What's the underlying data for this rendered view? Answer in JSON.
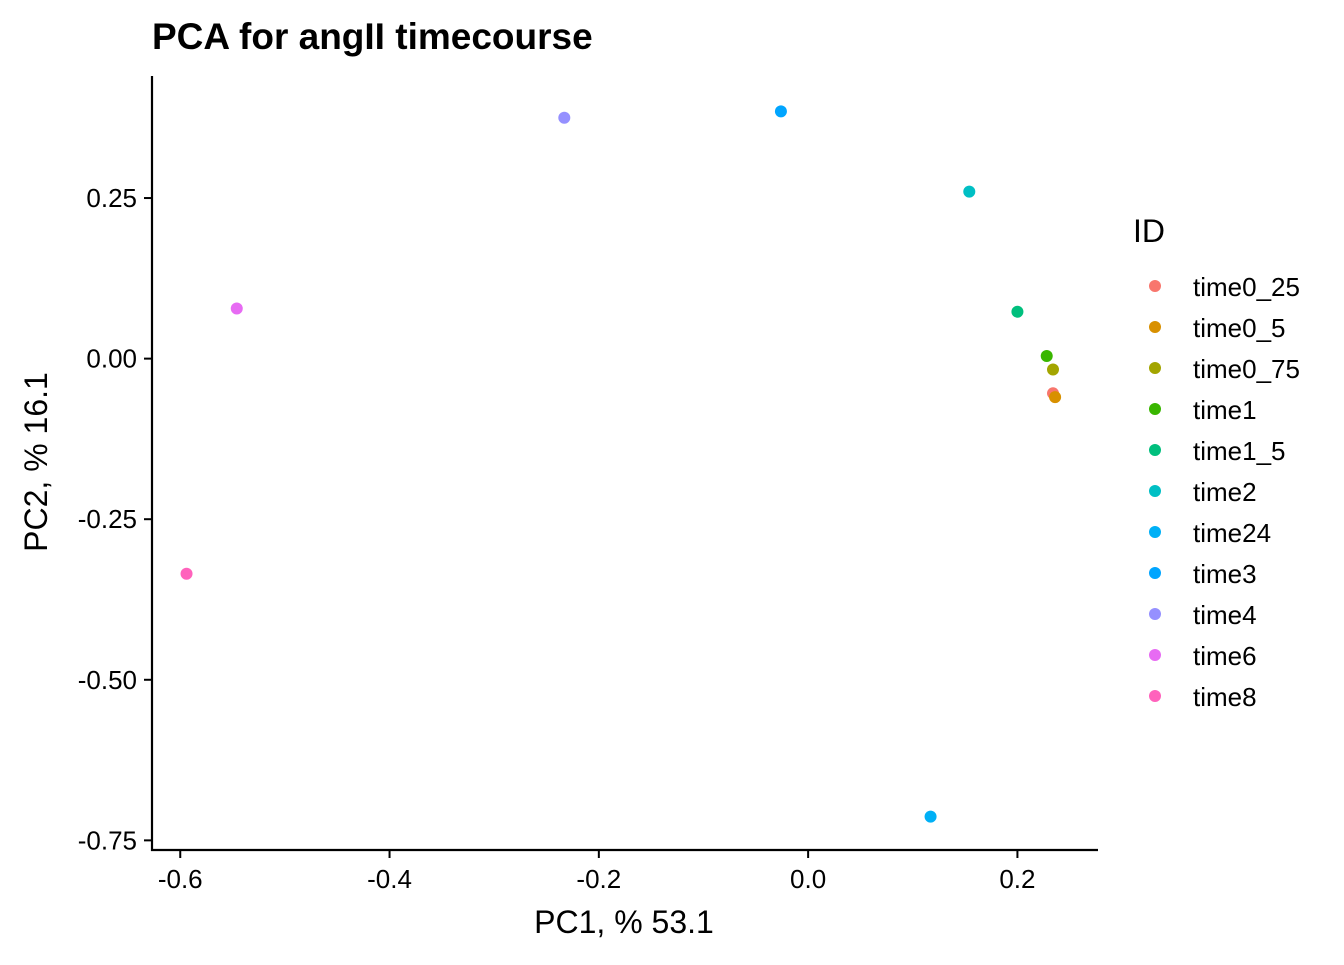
{
  "chart_data": {
    "type": "scatter",
    "title": "PCA for angII timecourse",
    "xlabel": "PC1, % 53.1",
    "ylabel": "PC2, % 16.1",
    "xlim": [
      -0.627,
      0.277
    ],
    "ylim": [
      -0.765,
      0.44
    ],
    "x_ticks": [
      -0.6,
      -0.4,
      -0.2,
      0.0,
      0.2
    ],
    "x_tick_labels": [
      "-0.6",
      "-0.4",
      "-0.2",
      "0.0",
      "0.2"
    ],
    "y_ticks": [
      -0.75,
      -0.5,
      -0.25,
      0.0,
      0.25
    ],
    "y_tick_labels": [
      "-0.75",
      "-0.50",
      "-0.25",
      "0.00",
      "0.25"
    ],
    "grid": false,
    "legend": {
      "title": "ID",
      "position": "right"
    },
    "series": [
      {
        "name": "time0_25",
        "color": "#F8766D",
        "x": [
          0.234
        ],
        "y": [
          -0.054
        ]
      },
      {
        "name": "time0_5",
        "color": "#D89000",
        "x": [
          0.236
        ],
        "y": [
          -0.06
        ]
      },
      {
        "name": "time0_75",
        "color": "#A3A500",
        "x": [
          0.234
        ],
        "y": [
          -0.017
        ]
      },
      {
        "name": "time1",
        "color": "#39B600",
        "x": [
          0.228
        ],
        "y": [
          0.004
        ]
      },
      {
        "name": "time1_5",
        "color": "#00BF7D",
        "x": [
          0.2
        ],
        "y": [
          0.073
        ]
      },
      {
        "name": "time2",
        "color": "#00BFC4",
        "x": [
          0.154
        ],
        "y": [
          0.26
        ]
      },
      {
        "name": "time24",
        "color": "#00B0F6",
        "x": [
          0.117
        ],
        "y": [
          -0.713
        ]
      },
      {
        "name": "time3",
        "color": "#00A5FF",
        "x": [
          -0.026
        ],
        "y": [
          0.385
        ]
      },
      {
        "name": "time4",
        "color": "#9590FF",
        "x": [
          -0.233
        ],
        "y": [
          0.375
        ]
      },
      {
        "name": "time6",
        "color": "#E76BF3",
        "x": [
          -0.546
        ],
        "y": [
          0.078
        ]
      },
      {
        "name": "time8",
        "color": "#FF62BC",
        "x": [
          -0.594
        ],
        "y": [
          -0.335
        ]
      }
    ]
  }
}
